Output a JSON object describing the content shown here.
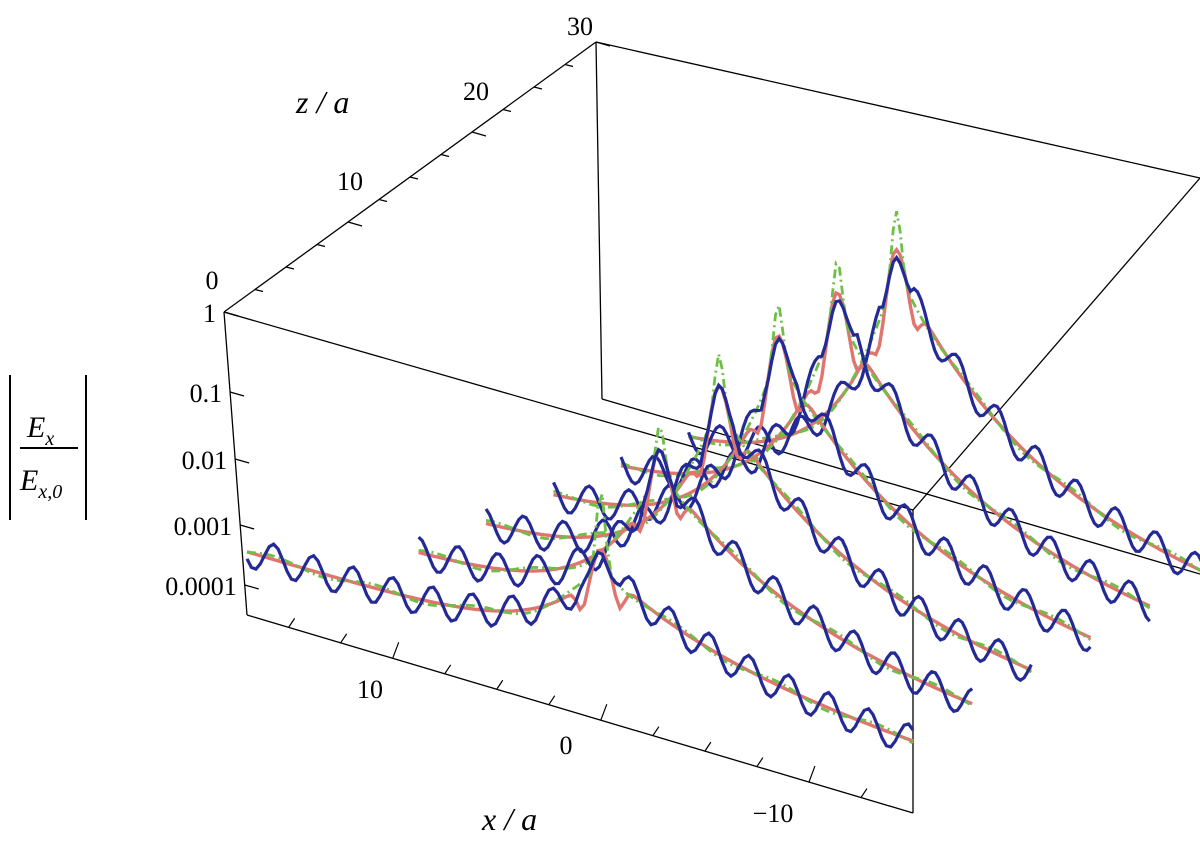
{
  "chart_data": {
    "type": "line",
    "subtype": "3d-waterfall",
    "x_label": "x / a",
    "z_label": "z / a",
    "y_label": {
      "numerator": "E",
      "numerator_sub": "x",
      "denominator": "E",
      "denominator_sub": "x,0"
    },
    "x_ticks": [
      "10",
      "0",
      "−10"
    ],
    "z_ticks": [
      "0",
      "10",
      "20",
      "30"
    ],
    "y_ticks": [
      "1",
      "0.1",
      "0.01",
      "0.001",
      "0.0001"
    ],
    "y_scale": "log",
    "z_slices": [
      0,
      5,
      10,
      15,
      20,
      25
    ],
    "x_range": [
      17,
      -15
    ],
    "series_colors": {
      "blue": "#232a96",
      "red": "#e07570",
      "green": "#6ebf45"
    },
    "peak_log10_by_slice": [
      -2.3,
      -1.4,
      -1.0,
      -0.8,
      -0.7,
      -0.6
    ],
    "green_peak_log10_by_slice": [
      -1.2,
      -0.8,
      -0.3,
      -0.1,
      0.0,
      0.2
    ],
    "floor_log10": -4.0,
    "tail_log10": -3.9
  }
}
